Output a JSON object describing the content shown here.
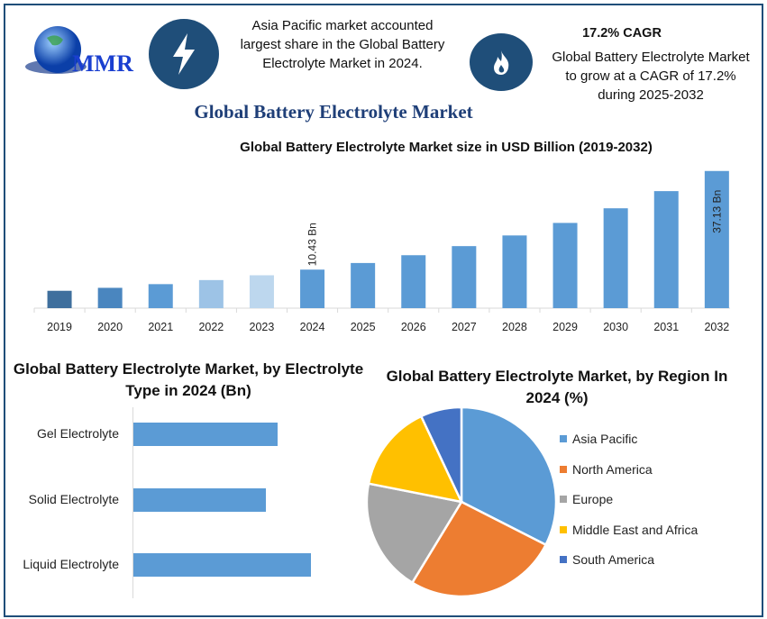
{
  "header": {
    "logo_text": "MMR",
    "icon_left": "lightning-bolt-icon",
    "icon_right": "flame-icon",
    "note_left": "Asia Pacific market accounted largest share in the Global Battery Electrolyte Market in 2024.",
    "cagr_title": "17.2% CAGR",
    "note_right": "Global Battery Electrolyte Market to grow at a CAGR of 17.2% during 2025-2032",
    "title": "Global Battery Electrolyte Market"
  },
  "colors": {
    "brand": "#1f4e79",
    "bar": "#5b9bd5"
  },
  "chart_data": [
    {
      "type": "bar",
      "title": "Global Battery Electrolyte Market size in USD Billion (2019-2032)",
      "categories": [
        "2019",
        "2020",
        "2021",
        "2022",
        "2023",
        "2024",
        "2025",
        "2026",
        "2027",
        "2028",
        "2029",
        "2030",
        "2031",
        "2032"
      ],
      "values": [
        4.7,
        5.5,
        6.5,
        7.6,
        8.9,
        10.43,
        12.22,
        14.33,
        16.79,
        19.68,
        23.07,
        27.03,
        31.68,
        37.13
      ],
      "colors": [
        "#3f6f9d",
        "#4a86bf",
        "#5b9bd5",
        "#9dc3e6",
        "#bdd7ee",
        "#5b9bd5",
        "#5b9bd5",
        "#5b9bd5",
        "#5b9bd5",
        "#5b9bd5",
        "#5b9bd5",
        "#5b9bd5",
        "#5b9bd5",
        "#5b9bd5"
      ],
      "data_labels": {
        "2024": "10.43 Bn",
        "2032": "37.13 Bn"
      },
      "ylim": [
        0,
        40
      ],
      "grid": false
    },
    {
      "type": "bar",
      "orientation": "horizontal",
      "title": "Global Battery Electrolyte Market, by Electrolyte Type in 2024 (Bn)",
      "categories": [
        "Gel Electrolyte",
        "Solid Electrolyte",
        "Liquid Electrolyte"
      ],
      "values": [
        3.2,
        2.95,
        3.95
      ],
      "color": "#5b9bd5"
    },
    {
      "type": "pie",
      "title": "Global Battery Electrolyte Market, by Region In 2024 (%)",
      "categories": [
        "Asia Pacific",
        "North America",
        "Europe",
        "Middle East and Africa",
        "South America"
      ],
      "values": [
        32.5,
        26.2,
        19.4,
        14.9,
        7.0
      ],
      "colors": [
        "#5b9bd5",
        "#ed7d31",
        "#a5a5a5",
        "#ffc000",
        "#4472c4"
      ],
      "legend": "right"
    }
  ]
}
